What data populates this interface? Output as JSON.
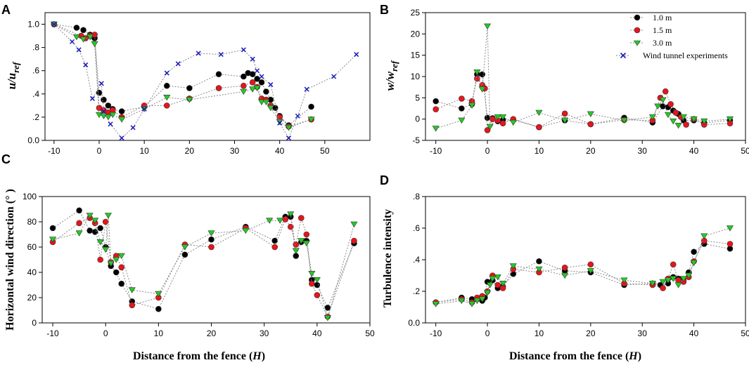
{
  "figure": {
    "xlabel_main": "Distance from the fence (",
    "xlabel_var": "H",
    "xlabel_close": ")"
  },
  "colors": {
    "s1": "#000000",
    "s2": "#e8141b",
    "s3": "#22cc22",
    "s4": "#1a1ab8",
    "line": "#8a8a8a"
  },
  "legend": {
    "entries": [
      "1.0 m",
      "1.5 m",
      "3.0 m",
      "Wind tunnel experiments"
    ]
  },
  "chart_data": [
    {
      "id": "A",
      "panel_label": "A",
      "type": "scatter",
      "ylabel_main": "u/u",
      "ylabel_sub": "ref",
      "xlim": [
        -12,
        60
      ],
      "ylim": [
        0,
        1.1
      ],
      "xticks": [
        -10,
        0,
        10,
        20,
        30,
        40,
        50
      ],
      "xtick_labels": [
        "-10",
        "0",
        "10",
        "20",
        "30",
        "40",
        "50"
      ],
      "yticks": [
        0,
        0.2,
        0.4,
        0.6,
        0.8,
        1.0
      ],
      "ytick_labels": [
        "0.0",
        ".2",
        ".4",
        ".6",
        ".8",
        "1.0"
      ],
      "series": [
        {
          "name": "1.0 m",
          "marker": "circle",
          "color": "#000000",
          "x": [
            -10,
            -5,
            -3.5,
            -2,
            -1,
            0,
            1,
            2,
            3,
            5,
            10,
            15,
            20,
            26.5,
            32,
            33,
            34,
            35,
            36,
            37,
            38,
            39,
            40,
            42,
            47
          ],
          "y": [
            1.0,
            0.97,
            0.95,
            0.91,
            0.88,
            0.41,
            0.35,
            0.3,
            0.27,
            0.25,
            0.29,
            0.47,
            0.45,
            0.57,
            0.55,
            0.58,
            0.57,
            0.53,
            0.5,
            0.42,
            0.35,
            0.28,
            0.21,
            0.13,
            0.29
          ]
        },
        {
          "name": "1.5 m",
          "marker": "circle",
          "color": "#e8141b",
          "x": [
            -10,
            -4,
            -3,
            -2,
            -1,
            0,
            1,
            2,
            3,
            5,
            10,
            15,
            20,
            26.5,
            32,
            34,
            35,
            36,
            37,
            38,
            40,
            42,
            47
          ],
          "y": [
            1.0,
            0.9,
            0.88,
            0.9,
            0.91,
            0.28,
            0.26,
            0.24,
            0.26,
            0.2,
            0.3,
            0.3,
            0.36,
            0.45,
            0.47,
            0.5,
            0.46,
            0.36,
            0.35,
            0.3,
            0.2,
            0.12,
            0.18
          ]
        },
        {
          "name": "3.0 m",
          "marker": "triangle",
          "color": "#22cc22",
          "x": [
            -10,
            -5,
            -3.5,
            -2,
            -1,
            0,
            1,
            2,
            3,
            5,
            10,
            15,
            20,
            32,
            34,
            35,
            36,
            37,
            38,
            40,
            42,
            47
          ],
          "y": [
            1.0,
            0.89,
            0.87,
            0.89,
            0.83,
            0.22,
            0.21,
            0.2,
            0.22,
            0.18,
            0.27,
            0.37,
            0.35,
            0.42,
            0.44,
            0.45,
            0.33,
            0.33,
            0.28,
            0.16,
            0.11,
            0.18
          ]
        },
        {
          "name": "Wind tunnel experiments",
          "marker": "x",
          "color": "#1a1ab8",
          "x": [
            -10,
            -6,
            -4.5,
            -3,
            -1.5,
            0.5,
            1,
            2.5,
            5,
            7.5,
            10,
            15,
            17.5,
            22,
            27,
            32,
            34,
            35,
            36,
            38,
            40,
            42,
            44,
            46,
            52,
            57
          ],
          "y": [
            1.0,
            0.85,
            0.78,
            0.65,
            0.36,
            0.49,
            0.25,
            0.14,
            0.02,
            0.11,
            0.27,
            0.58,
            0.66,
            0.75,
            0.74,
            0.78,
            0.7,
            0.6,
            0.55,
            0.48,
            0.15,
            0.02,
            0.21,
            0.44,
            0.55,
            0.74
          ]
        }
      ]
    },
    {
      "id": "B",
      "panel_label": "B",
      "type": "scatter",
      "ylabel_main": "w/w",
      "ylabel_sub": "ref",
      "xlim": [
        -12,
        50
      ],
      "ylim": [
        -5,
        25
      ],
      "xticks": [
        -10,
        0,
        10,
        20,
        30,
        40,
        50
      ],
      "xtick_labels": [
        "-10",
        "0",
        "10",
        "20",
        "30",
        "40",
        "50"
      ],
      "yticks": [
        -5,
        0,
        5,
        10,
        15,
        20,
        25
      ],
      "ytick_labels": [
        "-5",
        "0",
        "5",
        "10",
        "15",
        "20",
        "25"
      ],
      "series": [
        {
          "name": "1.0 m",
          "marker": "circle",
          "color": "#000000",
          "x": [
            -10,
            -5,
            -3,
            -2,
            -1,
            0,
            1,
            2,
            3,
            5,
            10,
            15,
            20,
            26.5,
            32,
            34,
            35,
            36,
            37,
            38,
            40,
            42,
            47
          ],
          "y": [
            4.2,
            2.5,
            3.5,
            10.5,
            10.5,
            0.3,
            0.2,
            -0.5,
            -0.2,
            -0.2,
            -1.9,
            -0.3,
            -1.2,
            0.3,
            -0.8,
            3.0,
            2.8,
            2.0,
            1.2,
            -0.3,
            -0.3,
            -0.9,
            -0.3
          ]
        },
        {
          "name": "1.5 m",
          "marker": "circle",
          "color": "#e8141b",
          "x": [
            -10,
            -5,
            -3,
            -2,
            -1,
            -0.5,
            0,
            1,
            2,
            3,
            5,
            10,
            15,
            20,
            26.5,
            32,
            33.5,
            34.5,
            35.5,
            36.5,
            37.5,
            38.5,
            40,
            42,
            47
          ],
          "y": [
            2.3,
            4.8,
            4.2,
            9.5,
            8.0,
            7.2,
            -2.6,
            0.0,
            -0.3,
            -1.0,
            0.0,
            -1.9,
            1.3,
            -1.2,
            -0.2,
            -0.3,
            5.0,
            6.5,
            3.5,
            1.5,
            0.5,
            -1.3,
            0.0,
            -1.3,
            -1.0
          ]
        },
        {
          "name": "3.0 m",
          "marker": "triangle",
          "color": "#22cc22",
          "x": [
            -10,
            -5,
            -3,
            -2,
            -1,
            0,
            0.5,
            2,
            3,
            5,
            10,
            15,
            20,
            26.5,
            32,
            33,
            34,
            35,
            36,
            37,
            38,
            40,
            42,
            47
          ],
          "y": [
            -2.2,
            -0.3,
            3.2,
            11.0,
            7.0,
            21.8,
            -1.8,
            0.5,
            0.5,
            -0.8,
            1.5,
            -0.3,
            1.2,
            -0.3,
            0.5,
            3.0,
            4.5,
            1.0,
            -0.5,
            -1.5,
            0.5,
            0.0,
            -0.5,
            0.0
          ]
        }
      ]
    },
    {
      "id": "C",
      "panel_label": "C",
      "type": "scatter",
      "ylabel": "Horizontal wind direction (° )",
      "xlim": [
        -12,
        50
      ],
      "ylim": [
        0,
        100
      ],
      "xticks": [
        -10,
        0,
        10,
        20,
        30,
        40,
        50
      ],
      "xtick_labels": [
        "-10",
        "0",
        "10",
        "20",
        "30",
        "40",
        "50"
      ],
      "yticks": [
        0,
        20,
        40,
        60,
        80,
        100
      ],
      "ytick_labels": [
        "0",
        "20",
        "40",
        "60",
        "80",
        "100"
      ],
      "series": [
        {
          "name": "1.0 m",
          "marker": "circle",
          "color": "#000000",
          "x": [
            -10,
            -5,
            -3,
            -2,
            -1,
            0,
            1,
            2,
            3,
            5,
            10,
            15,
            20,
            26.5,
            32,
            34,
            35,
            36,
            37,
            38,
            39,
            40,
            42,
            47
          ],
          "y": [
            75,
            89,
            73,
            72,
            75,
            60,
            45,
            40,
            31,
            17,
            11,
            54,
            66,
            76,
            65,
            84,
            84,
            53,
            64,
            65,
            34,
            30,
            12,
            63
          ]
        },
        {
          "name": "1.5 m",
          "marker": "circle",
          "color": "#e8141b",
          "x": [
            -10,
            -5,
            -3,
            -2,
            -1,
            0,
            1,
            2,
            3,
            5,
            10,
            15,
            20,
            26.5,
            32,
            34,
            35,
            36,
            37,
            38,
            39,
            40,
            42,
            47
          ],
          "y": [
            64,
            79,
            83,
            79,
            50,
            80,
            48,
            53,
            44,
            14,
            20,
            62,
            60,
            75,
            60,
            82,
            76,
            62,
            83,
            70,
            31,
            22,
            5,
            65
          ]
        },
        {
          "name": "3.0 m",
          "marker": "triangle",
          "color": "#22cc22",
          "x": [
            -10,
            -5,
            -3,
            -2,
            -1,
            0,
            0.5,
            1,
            2,
            3,
            5,
            10,
            15,
            20,
            26.5,
            31,
            33,
            35,
            36,
            37,
            38,
            39,
            40,
            42,
            47
          ],
          "y": [
            66,
            71,
            85,
            81,
            64,
            58,
            85,
            47,
            50,
            53,
            26,
            23,
            60,
            71,
            73,
            81,
            81,
            86,
            57,
            65,
            63,
            39,
            34,
            4,
            78
          ]
        }
      ]
    },
    {
      "id": "D",
      "panel_label": "D",
      "type": "scatter",
      "ylabel": "Turbulence intensity",
      "xlim": [
        -12,
        50
      ],
      "ylim": [
        0,
        0.8
      ],
      "xticks": [
        -10,
        0,
        10,
        20,
        30,
        40,
        50
      ],
      "xtick_labels": [
        "-10",
        "0",
        "10",
        "20",
        "30",
        "40",
        "50"
      ],
      "yticks": [
        0,
        0.2,
        0.4,
        0.6,
        0.8
      ],
      "ytick_labels": [
        "0.0",
        ".2",
        ".4",
        ".6",
        ".8"
      ],
      "series": [
        {
          "name": "1.0 m",
          "marker": "circle",
          "color": "#000000",
          "x": [
            -10,
            -5,
            -3,
            -2,
            -1,
            -0.5,
            0,
            1,
            2,
            3,
            5,
            10,
            15,
            20,
            26.5,
            32,
            33.5,
            35,
            36,
            37,
            38,
            39,
            40,
            42,
            47
          ],
          "y": [
            0.13,
            0.16,
            0.15,
            0.15,
            0.14,
            0.16,
            0.26,
            0.27,
            0.22,
            0.23,
            0.31,
            0.39,
            0.33,
            0.32,
            0.24,
            0.25,
            0.24,
            0.25,
            0.29,
            0.28,
            0.27,
            0.32,
            0.45,
            0.5,
            0.47
          ]
        },
        {
          "name": "1.5 m",
          "marker": "circle",
          "color": "#e8141b",
          "x": [
            -10,
            -5,
            -3,
            -2,
            -1,
            0,
            1,
            2,
            3,
            5,
            10,
            15,
            20,
            26.5,
            32,
            34,
            35,
            36,
            37,
            38,
            39,
            40,
            42,
            47
          ],
          "y": [
            0.13,
            0.15,
            0.13,
            0.16,
            0.17,
            0.2,
            0.3,
            0.24,
            0.22,
            0.34,
            0.32,
            0.35,
            0.37,
            0.25,
            0.24,
            0.22,
            0.28,
            0.37,
            0.27,
            0.26,
            0.29,
            0.39,
            0.52,
            0.5
          ]
        },
        {
          "name": "3.0 m",
          "marker": "triangle",
          "color": "#22cc22",
          "x": [
            -10,
            -5,
            -3,
            -2,
            -1,
            0,
            0.5,
            1,
            2,
            3,
            5,
            10,
            15,
            20,
            26.5,
            32,
            34,
            35,
            36,
            37,
            38,
            39,
            40,
            42,
            47
          ],
          "y": [
            0.12,
            0.14,
            0.12,
            0.14,
            0.15,
            0.19,
            0.24,
            0.28,
            0.29,
            0.25,
            0.36,
            0.34,
            0.3,
            0.33,
            0.27,
            0.25,
            0.26,
            0.27,
            0.28,
            0.24,
            0.28,
            0.3,
            0.38,
            0.55,
            0.6
          ]
        }
      ]
    }
  ]
}
